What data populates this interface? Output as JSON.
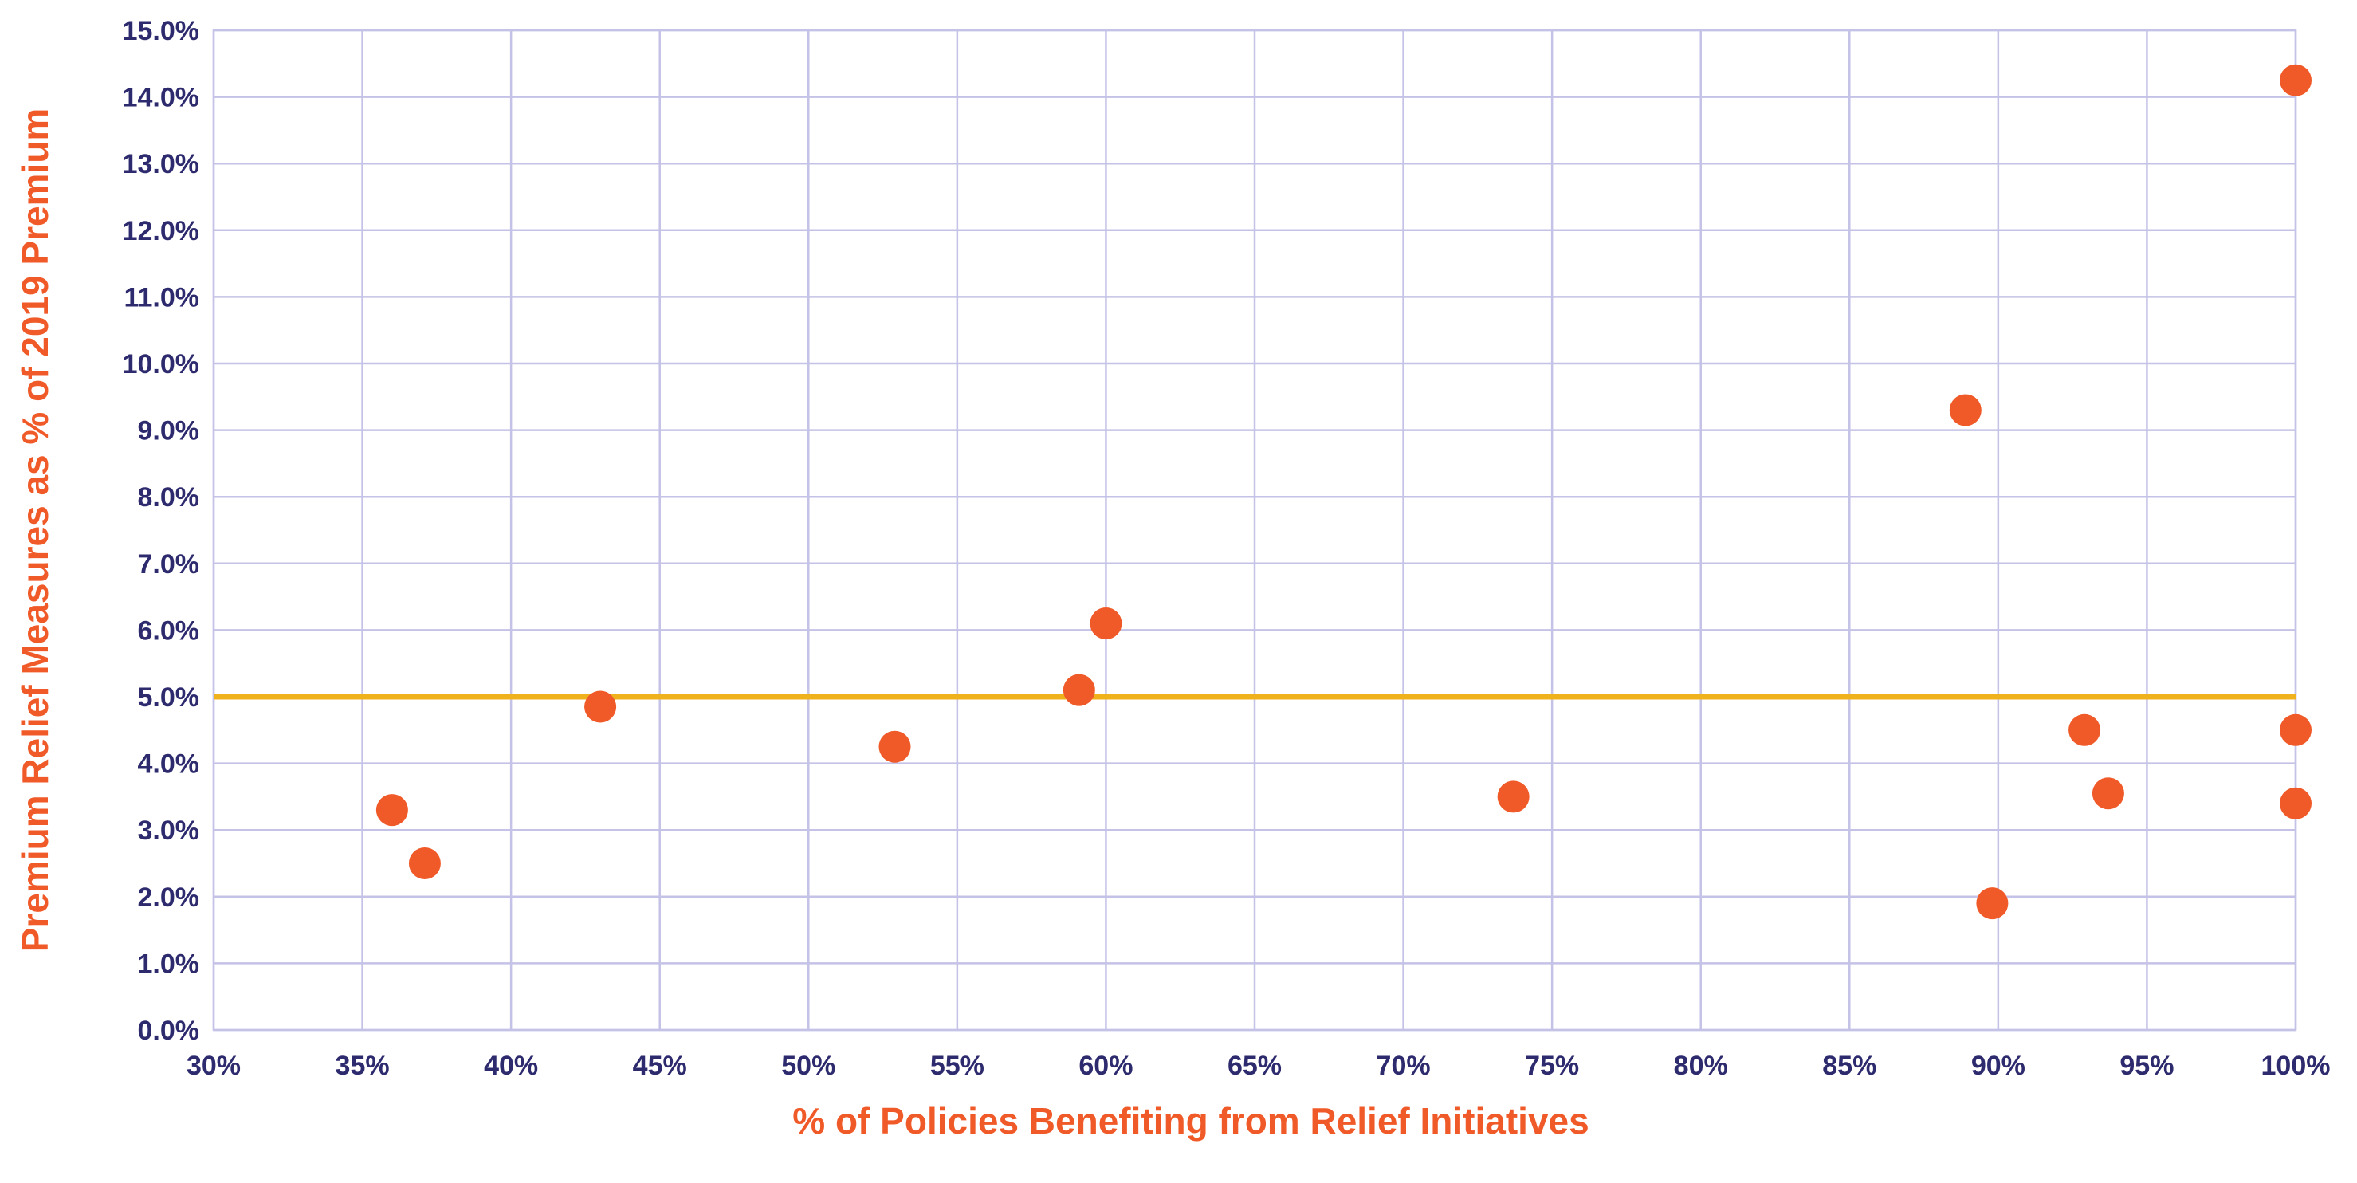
{
  "chart_data": {
    "type": "scatter",
    "title": "",
    "xlabel": "% of Policies Benefiting from Relief Initiatives",
    "ylabel": "Premium Relief Measures as % of 2019 Premium",
    "xlim": [
      30,
      100
    ],
    "ylim": [
      0,
      15
    ],
    "x_ticks": [
      "30%",
      "35%",
      "40%",
      "45%",
      "50%",
      "55%",
      "60%",
      "65%",
      "70%",
      "75%",
      "80%",
      "85%",
      "90%",
      "95%",
      "100%"
    ],
    "y_ticks": [
      "0.0%",
      "1.0%",
      "2.0%",
      "3.0%",
      "4.0%",
      "5.0%",
      "6.0%",
      "7.0%",
      "8.0%",
      "9.0%",
      "10.0%",
      "11.0%",
      "12.0%",
      "13.0%",
      "14.0%",
      "15.0%"
    ],
    "grid": true,
    "legend": "none",
    "reference_line": {
      "y": 5.0,
      "color": "#f0b21c"
    },
    "point_color": "#f05a28",
    "points": [
      {
        "x": 36.0,
        "y": 3.3
      },
      {
        "x": 37.1,
        "y": 2.5
      },
      {
        "x": 43.0,
        "y": 4.85
      },
      {
        "x": 52.9,
        "y": 4.25
      },
      {
        "x": 59.1,
        "y": 5.1
      },
      {
        "x": 60.0,
        "y": 6.1
      },
      {
        "x": 73.7,
        "y": 3.5
      },
      {
        "x": 88.9,
        "y": 9.3
      },
      {
        "x": 89.8,
        "y": 1.9
      },
      {
        "x": 92.9,
        "y": 4.5
      },
      {
        "x": 93.7,
        "y": 3.55
      },
      {
        "x": 100.0,
        "y": 14.25
      },
      {
        "x": 100.0,
        "y": 4.5
      },
      {
        "x": 100.0,
        "y": 3.4
      }
    ]
  }
}
